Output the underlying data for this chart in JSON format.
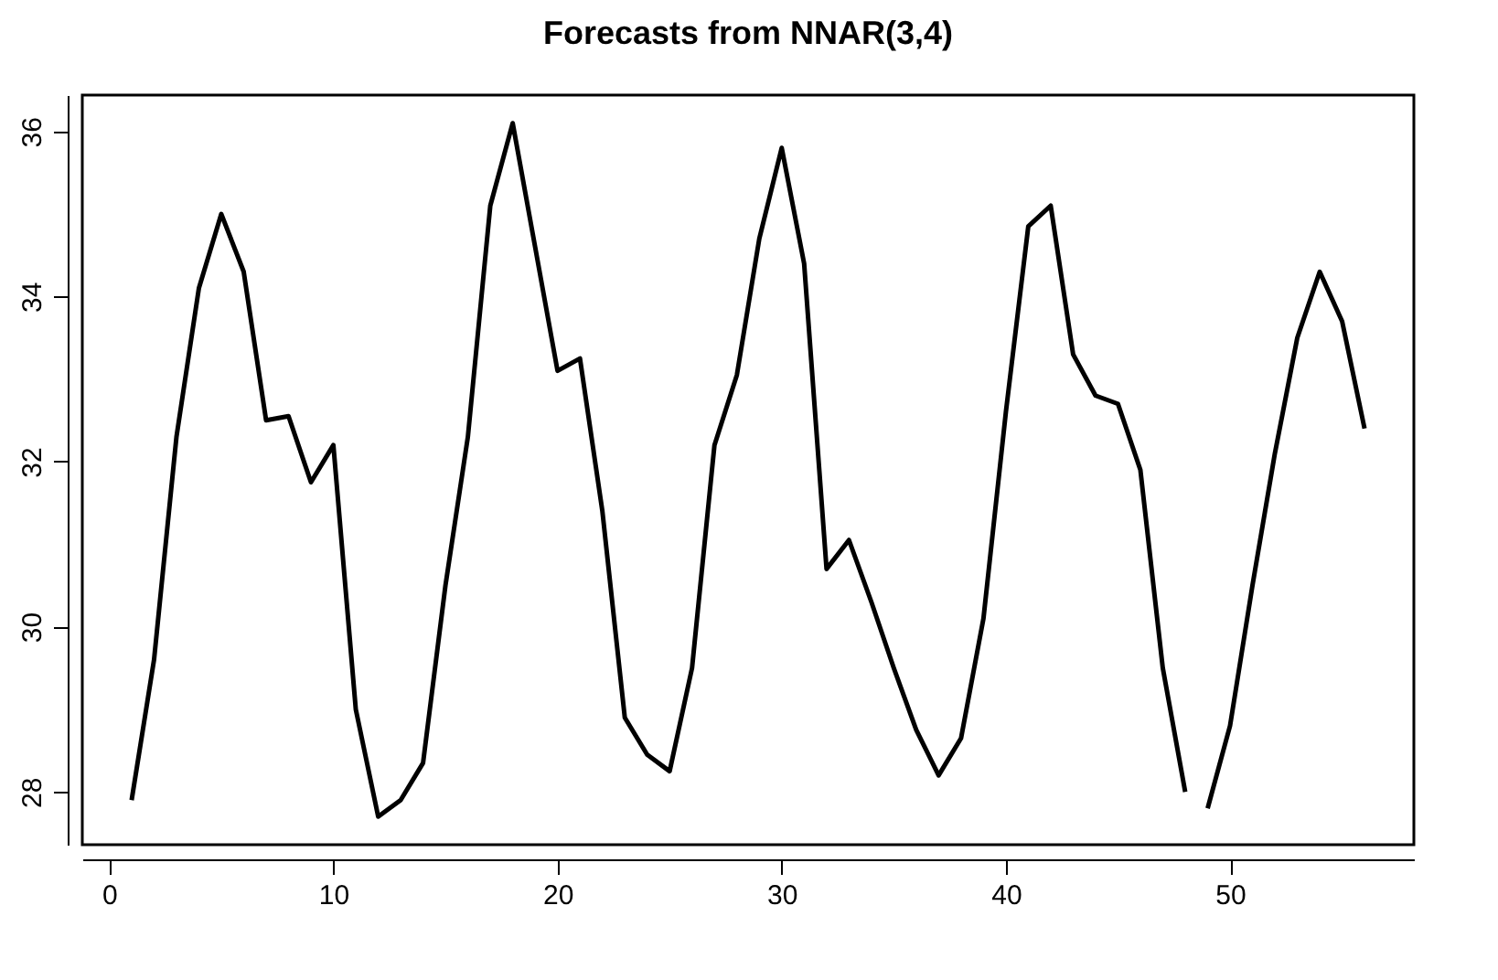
{
  "chart_data": {
    "type": "line",
    "title": "Forecasts from NNAR(3,4)",
    "series": [
      {
        "color": "#000000",
        "x": [
          1,
          2,
          3,
          4,
          5,
          6,
          7,
          8,
          9,
          10,
          11,
          12,
          13,
          14,
          15,
          16,
          17,
          18,
          19,
          20,
          21,
          22,
          23,
          24,
          25,
          26,
          27,
          28,
          29,
          30,
          31,
          32,
          33,
          34,
          35,
          36,
          37,
          38,
          39,
          40,
          41,
          42,
          43,
          44,
          45,
          46,
          47,
          48
        ],
        "values": [
          27.9,
          29.6,
          32.3,
          34.1,
          35.0,
          34.3,
          32.5,
          32.55,
          31.75,
          32.2,
          29.0,
          27.7,
          27.9,
          28.35,
          30.5,
          32.3,
          35.1,
          36.1,
          34.6,
          33.1,
          33.25,
          31.4,
          28.9,
          28.45,
          28.25,
          29.5,
          32.2,
          33.05,
          34.7,
          35.8,
          34.4,
          30.7,
          31.05,
          30.3,
          29.5,
          28.75,
          28.2,
          28.65,
          30.1,
          32.6,
          34.85,
          35.1,
          33.3,
          32.8,
          32.7,
          31.9,
          29.5,
          28.0
        ]
      },
      {
        "color": "#000000",
        "x": [
          49,
          50,
          51,
          52,
          53,
          54,
          55,
          56
        ],
        "values": [
          27.8,
          28.8,
          30.5,
          32.1,
          33.5,
          34.3,
          33.7,
          32.4
        ]
      }
    ],
    "xlim": [
      -1.2,
      58.2
    ],
    "xticks": [
      0,
      10,
      20,
      30,
      40,
      50
    ],
    "ylim": [
      27.36,
      36.44
    ],
    "yticks": [
      28,
      30,
      32,
      34,
      36
    ],
    "grid": false,
    "line_style": "solid",
    "marker": "none"
  }
}
